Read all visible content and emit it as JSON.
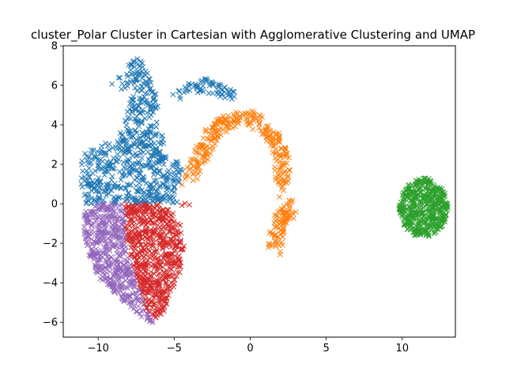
{
  "chart_data": {
    "type": "scatter",
    "title": "cluster_Polar Cluster in Cartesian with Agglomerative Clustering and UMAP",
    "xlabel": "",
    "ylabel": "",
    "xlim": [
      -12.3,
      13.5
    ],
    "ylim": [
      -6.75,
      8.0
    ],
    "x_ticks": [
      -10,
      -5,
      0,
      5,
      10
    ],
    "y_ticks": [
      -6,
      -4,
      -2,
      0,
      2,
      4,
      6,
      8
    ],
    "x_tick_labels": [
      "−10",
      "−5",
      "0",
      "5",
      "10"
    ],
    "y_tick_labels": [
      "−6",
      "−4",
      "−2",
      "0",
      "2",
      "4",
      "6",
      "8"
    ],
    "grid": false,
    "marker": "x",
    "legend": "none",
    "series": [
      {
        "color": "#1f77b4",
        "regions": [
          {
            "shape": "polygon",
            "points": [
              [
                -11.0,
                0.2
              ],
              [
                -11.2,
                1.5
              ],
              [
                -11.0,
                2.5
              ],
              [
                -9.8,
                3.0
              ],
              [
                -8.7,
                3.3
              ],
              [
                -8.3,
                4.3
              ],
              [
                -7.8,
                5.4
              ],
              [
                -8.5,
                5.8
              ],
              [
                -9.2,
                6.1
              ],
              [
                -8.8,
                6.5
              ],
              [
                -8.2,
                6.2
              ],
              [
                -8.0,
                7.2
              ],
              [
                -7.3,
                7.4
              ],
              [
                -6.8,
                6.8
              ],
              [
                -6.2,
                5.6
              ],
              [
                -5.9,
                5.0
              ],
              [
                -6.3,
                4.4
              ],
              [
                -5.6,
                3.2
              ],
              [
                -6.0,
                2.5
              ],
              [
                -5.1,
                2.3
              ],
              [
                -4.3,
                1.9
              ],
              [
                -4.5,
                1.2
              ],
              [
                -5.0,
                0.5
              ],
              [
                -4.6,
                0.05
              ],
              [
                -6.5,
                0.0
              ],
              [
                -9.0,
                0.0
              ],
              [
                -10.8,
                0.0
              ]
            ],
            "density": 650
          },
          {
            "shape": "polyline",
            "points": [
              [
                -4.7,
                5.5
              ],
              [
                -4.0,
                5.8
              ],
              [
                -3.0,
                6.0
              ],
              [
                -2.0,
                5.8
              ],
              [
                -1.3,
                5.4
              ]
            ],
            "width": 0.45,
            "density": 70
          }
        ]
      },
      {
        "color": "#ff7f0e",
        "regions": [
          {
            "shape": "polyline",
            "points": [
              [
                -4.2,
                1.2
              ],
              [
                -3.6,
                1.9
              ],
              [
                -3.0,
                2.8
              ],
              [
                -2.5,
                3.6
              ],
              [
                -1.6,
                4.1
              ],
              [
                -0.7,
                4.45
              ],
              [
                0.3,
                4.3
              ],
              [
                0.9,
                3.7
              ],
              [
                1.6,
                3.3
              ],
              [
                2.0,
                2.4
              ],
              [
                2.1,
                1.4
              ],
              [
                2.4,
                0.4
              ],
              [
                2.6,
                -0.7
              ],
              [
                2.1,
                -0.5
              ],
              [
                1.8,
                -1.3
              ],
              [
                1.6,
                -2.3
              ]
            ],
            "width": 0.55,
            "density": 380
          }
        ]
      },
      {
        "color": "#2ca02c",
        "regions": [
          {
            "shape": "ellipse",
            "center": [
              11.4,
              -0.2
            ],
            "rx": 1.6,
            "ry": 1.5,
            "density": 480
          }
        ]
      },
      {
        "color": "#d62728",
        "regions": [
          {
            "shape": "polygon",
            "points": [
              [
                -8.2,
                0.0
              ],
              [
                -8.3,
                -1.2
              ],
              [
                -8.0,
                -2.5
              ],
              [
                -7.6,
                -3.5
              ],
              [
                -7.2,
                -4.4
              ],
              [
                -6.9,
                -5.3
              ],
              [
                -6.3,
                -5.8
              ],
              [
                -5.7,
                -5.5
              ],
              [
                -5.2,
                -4.5
              ],
              [
                -4.6,
                -3.4
              ],
              [
                -4.3,
                -2.1
              ],
              [
                -4.6,
                -1.0
              ],
              [
                -5.2,
                -0.3
              ],
              [
                -6.1,
                0.0
              ]
            ],
            "density": 620
          },
          {
            "shape": "points",
            "points": [
              [
                -4.3,
                0.02
              ],
              [
                -4.0,
                -0.05
              ],
              [
                -4.5,
                -0.08
              ]
            ]
          }
        ]
      },
      {
        "color": "#9467bd",
        "regions": [
          {
            "shape": "polygon",
            "points": [
              [
                -11.0,
                -0.4
              ],
              [
                -10.9,
                -1.6
              ],
              [
                -10.6,
                -2.6
              ],
              [
                -10.0,
                -3.7
              ],
              [
                -9.0,
                -4.5
              ],
              [
                -7.9,
                -5.2
              ],
              [
                -7.0,
                -5.9
              ],
              [
                -6.3,
                -6.1
              ],
              [
                -6.9,
                -5.3
              ],
              [
                -7.3,
                -4.3
              ],
              [
                -7.7,
                -3.3
              ],
              [
                -8.1,
                -2.4
              ],
              [
                -8.3,
                -1.2
              ],
              [
                -8.2,
                0.0
              ],
              [
                -9.8,
                0.05
              ]
            ],
            "density": 480
          }
        ]
      }
    ]
  }
}
